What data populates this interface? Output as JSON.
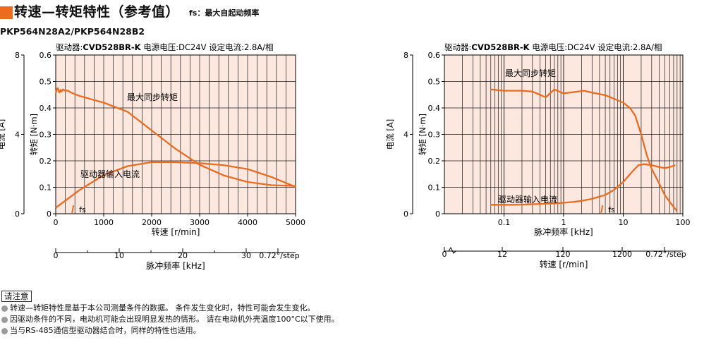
{
  "header": {
    "title": "转速—转矩特性（参考值）",
    "fs_note": "fs：最大自起动频率",
    "model": "PKP564N28A2/PKP564N28B2"
  },
  "colors": {
    "accent": "#ec6c1f",
    "plot_bg": "#fde8e0",
    "curve": "#ec6c1f",
    "grid": "#1a1a1a"
  },
  "notes": {
    "title": "请注意",
    "items": [
      "转速—转矩特性是基于本公司测量条件的数据。 条件发生变化时，特性可能会发生变化。",
      "因驱动条件的不同，电动机可能会出现明显发热的情形。 请在电动机外壳温度100°C以下使用。",
      "当与RS-485通信型驱动器结合时，同样的特性也适用。"
    ]
  },
  "chart_data": [
    {
      "type": "line",
      "title": "驱动器:CVD528BR-K  电源电压:DC24V  设定电流:2.8A/相",
      "title_parts": {
        "driver_label": "驱动器:",
        "driver": "CVD528BR-K",
        "rest": " 电源电压:DC24V  设定电流:2.8A/相"
      },
      "xlabel": "转速 [r/min]",
      "ylabel": "转矩 [N·m]",
      "y2label": "电流 [A]",
      "x2label": "脉冲频率 [kHz]",
      "x_scale": "linear",
      "xlim": [
        0,
        5000
      ],
      "ylim": [
        0,
        0.6
      ],
      "y2lim": [
        0,
        8
      ],
      "xticks": [
        0,
        1000,
        2000,
        3000,
        4000,
        5000
      ],
      "xtick_labels": [
        "0",
        "1000",
        "2000",
        "3000",
        "4000",
        "5000"
      ],
      "yticks": [
        0,
        0.1,
        0.2,
        0.3,
        0.4,
        0.5,
        0.6
      ],
      "ytick_labels": [
        "0",
        "0.1",
        "0.2",
        "0.3",
        "0.4",
        "0.5",
        "0.6"
      ],
      "y2ticks": [
        0,
        4,
        8
      ],
      "y2tick_labels": [
        "0",
        "4",
        "8"
      ],
      "x2_axis": {
        "tick_labels": [
          "0",
          "10",
          "20",
          "30"
        ],
        "end_label": "0.72°/step"
      },
      "grid": true,
      "series": [
        {
          "name": "最大同步转矩",
          "x": [
            0,
            20,
            40,
            60,
            80,
            100,
            120,
            150,
            200,
            250,
            300,
            400,
            500,
            700,
            1000,
            1500,
            2000,
            2500,
            3000,
            3500,
            4000,
            4500,
            5000
          ],
          "y": [
            0.455,
            0.47,
            0.475,
            0.465,
            0.458,
            0.468,
            0.462,
            0.47,
            0.465,
            0.466,
            0.46,
            0.452,
            0.445,
            0.435,
            0.42,
            0.385,
            0.315,
            0.245,
            0.185,
            0.145,
            0.12,
            0.108,
            0.105
          ]
        },
        {
          "name": "驱动器输入电流",
          "x": [
            0,
            500,
            1000,
            1500,
            2000,
            2500,
            3000,
            3500,
            4000,
            4500,
            5000
          ],
          "y": [
            0.3,
            1.2,
            1.95,
            2.4,
            2.6,
            2.6,
            2.55,
            2.45,
            2.25,
            1.85,
            1.35
          ]
        }
      ],
      "fs_marker": {
        "label": "fs",
        "x": 370
      }
    },
    {
      "type": "line",
      "title": "驱动器:CVD528BR-K  电源电压:DC24V  设定电流:2.8A/相",
      "title_parts": {
        "driver_label": "驱动器:",
        "driver": "CVD528BR-K",
        "rest": " 电源电压:DC24V  设定电流:2.8A/相"
      },
      "xlabel": "脉冲频率 [kHz]",
      "ylabel": "转矩 [N·m]",
      "y2label": "电流 [A]",
      "x2label": "转速 [r/min]",
      "x_scale": "log",
      "xlim": [
        0.01,
        100
      ],
      "ylim": [
        0,
        0.6
      ],
      "y2lim": [
        0,
        8
      ],
      "xticks": [
        0.1,
        1,
        10,
        100
      ],
      "xtick_labels": [
        "0.1",
        "1",
        "10",
        "100"
      ],
      "yticks": [
        0,
        0.1,
        0.2,
        0.3,
        0.4,
        0.5,
        0.6
      ],
      "ytick_labels": [
        "0",
        "0.1",
        "0.2",
        "0.3",
        "0.4",
        "0.5",
        "0.6"
      ],
      "y2ticks": [
        0,
        4,
        8
      ],
      "y2tick_labels": [
        "0",
        "4",
        "8"
      ],
      "x2_axis": {
        "tick_labels": [
          "0",
          "12",
          "120",
          "1200"
        ],
        "end_label": "0.72°/step"
      },
      "grid": true,
      "series": [
        {
          "name": "最大同步转矩",
          "x": [
            0.06,
            0.1,
            0.2,
            0.3,
            0.5,
            0.7,
            1,
            1.5,
            2.2,
            3,
            5,
            7,
            10,
            13,
            16,
            20,
            25,
            30,
            40,
            50,
            65,
            80
          ],
          "y": [
            0.47,
            0.465,
            0.465,
            0.462,
            0.44,
            0.47,
            0.455,
            0.46,
            0.465,
            0.458,
            0.448,
            0.435,
            0.42,
            0.4,
            0.37,
            0.3,
            0.22,
            0.17,
            0.115,
            0.07,
            0.035,
            0.01
          ]
        },
        {
          "name": "驱动器输入电流",
          "x": [
            0.06,
            0.1,
            0.2,
            0.3,
            0.5,
            0.7,
            1,
            1.5,
            2,
            3,
            5,
            7,
            10,
            14,
            18,
            22,
            30,
            40,
            50,
            60,
            75
          ],
          "y": [
            0.45,
            0.45,
            0.46,
            0.48,
            0.5,
            0.52,
            0.55,
            0.6,
            0.65,
            0.75,
            0.95,
            1.2,
            1.6,
            2.1,
            2.45,
            2.5,
            2.45,
            2.35,
            2.3,
            2.35,
            2.45
          ]
        }
      ],
      "fs_marker": {
        "label": "fs",
        "x": 4.5
      }
    }
  ]
}
